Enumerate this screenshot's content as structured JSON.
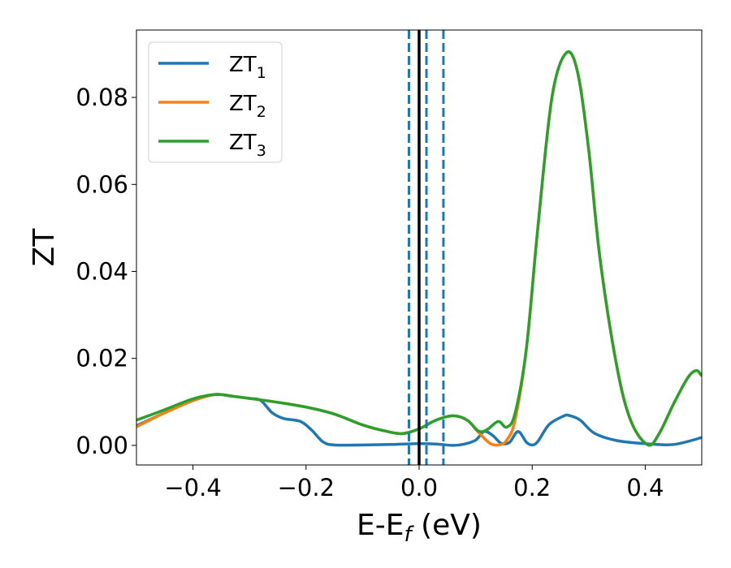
{
  "chart_data": {
    "type": "line",
    "xlabel": {
      "main": "E-E",
      "sub": "f",
      "unit": " (eV)"
    },
    "ylabel": "ZT",
    "xlim": [
      -0.5,
      0.5
    ],
    "ylim": [
      -0.0045,
      0.0955
    ],
    "x_ticks": [
      -0.4,
      -0.2,
      0.0,
      0.2,
      0.4
    ],
    "x_tick_labels": [
      "−0.4",
      "−0.2",
      "0.0",
      "0.2",
      "0.4"
    ],
    "y_ticks": [
      0.0,
      0.02,
      0.04,
      0.06,
      0.08
    ],
    "y_tick_labels": [
      "0.00",
      "0.02",
      "0.04",
      "0.06",
      "0.08"
    ],
    "grid": false,
    "legend_position": "top-left",
    "vertical_lines": [
      {
        "x": 0.0,
        "style": "solid",
        "color": "#000000"
      },
      {
        "x": -0.018,
        "style": "dashed",
        "color": "#1f77b4"
      },
      {
        "x": 0.013,
        "style": "dashed",
        "color": "#1f77b4"
      },
      {
        "x": 0.043,
        "style": "dashed",
        "color": "#1f77b4"
      }
    ],
    "series": [
      {
        "name": "ZT",
        "sub": "1",
        "color": "#1f77b4",
        "points": [
          [
            -0.5,
            0.0045
          ],
          [
            -0.45,
            0.0075
          ],
          [
            -0.4,
            0.0103
          ],
          [
            -0.36,
            0.0117
          ],
          [
            -0.33,
            0.0113
          ],
          [
            -0.3,
            0.0108
          ],
          [
            -0.28,
            0.0103
          ],
          [
            -0.26,
            0.0075
          ],
          [
            -0.24,
            0.0062
          ],
          [
            -0.21,
            0.0055
          ],
          [
            -0.19,
            0.0035
          ],
          [
            -0.17,
            0.0008
          ],
          [
            -0.15,
            0.0001
          ],
          [
            -0.1,
            0.0001
          ],
          [
            -0.05,
            0.0002
          ],
          [
            0.0,
            0.0004
          ],
          [
            0.03,
            0.0003
          ],
          [
            0.06,
            0.0
          ],
          [
            0.08,
            0.0003
          ],
          [
            0.1,
            0.0012
          ],
          [
            0.115,
            0.0032
          ],
          [
            0.13,
            0.0023
          ],
          [
            0.145,
            0.0005
          ],
          [
            0.16,
            0.0007
          ],
          [
            0.175,
            0.0032
          ],
          [
            0.19,
            0.0007
          ],
          [
            0.2,
            0.0001
          ],
          [
            0.21,
            0.0009
          ],
          [
            0.23,
            0.0048
          ],
          [
            0.255,
            0.0067
          ],
          [
            0.265,
            0.0069
          ],
          [
            0.285,
            0.0058
          ],
          [
            0.31,
            0.0028
          ],
          [
            0.35,
            0.0011
          ],
          [
            0.4,
            0.0004
          ],
          [
            0.45,
            0.0002
          ],
          [
            0.5,
            0.0018
          ]
        ]
      },
      {
        "name": "ZT",
        "sub": "2",
        "color": "#ff7f0e",
        "points": [
          [
            -0.5,
            0.0043
          ],
          [
            -0.45,
            0.0075
          ],
          [
            -0.4,
            0.0103
          ],
          [
            -0.36,
            0.0117
          ],
          [
            -0.33,
            0.0113
          ],
          [
            -0.3,
            0.0108
          ],
          [
            -0.25,
            0.0099
          ],
          [
            -0.2,
            0.0088
          ],
          [
            -0.15,
            0.0072
          ],
          [
            -0.1,
            0.0047
          ],
          [
            -0.06,
            0.0033
          ],
          [
            -0.03,
            0.0027
          ],
          [
            0.0,
            0.0038
          ],
          [
            0.03,
            0.0058
          ],
          [
            0.06,
            0.0068
          ],
          [
            0.085,
            0.0058
          ],
          [
            0.105,
            0.003
          ],
          [
            0.125,
            0.0005
          ],
          [
            0.14,
            0.0001
          ],
          [
            0.155,
            0.0012
          ],
          [
            0.17,
            0.006
          ],
          [
            0.19,
            0.0225
          ],
          [
            0.21,
            0.05
          ],
          [
            0.235,
            0.08
          ],
          [
            0.26,
            0.0902
          ],
          [
            0.28,
            0.086
          ],
          [
            0.3,
            0.068
          ],
          [
            0.32,
            0.043
          ],
          [
            0.35,
            0.018
          ],
          [
            0.375,
            0.0055
          ],
          [
            0.405,
            0.0001
          ],
          [
            0.425,
            0.0028
          ],
          [
            0.45,
            0.0095
          ],
          [
            0.475,
            0.0155
          ],
          [
            0.49,
            0.0172
          ],
          [
            0.5,
            0.016
          ]
        ]
      },
      {
        "name": "ZT",
        "sub": "3",
        "color": "#2ca02c",
        "points": [
          [
            -0.5,
            0.0058
          ],
          [
            -0.45,
            0.0082
          ],
          [
            -0.4,
            0.0107
          ],
          [
            -0.36,
            0.0117
          ],
          [
            -0.33,
            0.0113
          ],
          [
            -0.3,
            0.0108
          ],
          [
            -0.25,
            0.0099
          ],
          [
            -0.2,
            0.0088
          ],
          [
            -0.15,
            0.0072
          ],
          [
            -0.1,
            0.0047
          ],
          [
            -0.06,
            0.0033
          ],
          [
            -0.03,
            0.0027
          ],
          [
            0.0,
            0.0038
          ],
          [
            0.03,
            0.0058
          ],
          [
            0.06,
            0.0068
          ],
          [
            0.085,
            0.0058
          ],
          [
            0.105,
            0.0033
          ],
          [
            0.12,
            0.0036
          ],
          [
            0.14,
            0.0055
          ],
          [
            0.155,
            0.0042
          ],
          [
            0.17,
            0.0075
          ],
          [
            0.19,
            0.0225
          ],
          [
            0.21,
            0.05
          ],
          [
            0.235,
            0.08
          ],
          [
            0.26,
            0.0902
          ],
          [
            0.28,
            0.086
          ],
          [
            0.3,
            0.068
          ],
          [
            0.32,
            0.043
          ],
          [
            0.35,
            0.018
          ],
          [
            0.375,
            0.0055
          ],
          [
            0.405,
            0.0001
          ],
          [
            0.425,
            0.0028
          ],
          [
            0.45,
            0.0095
          ],
          [
            0.475,
            0.0155
          ],
          [
            0.49,
            0.0172
          ],
          [
            0.5,
            0.016
          ]
        ]
      }
    ]
  }
}
